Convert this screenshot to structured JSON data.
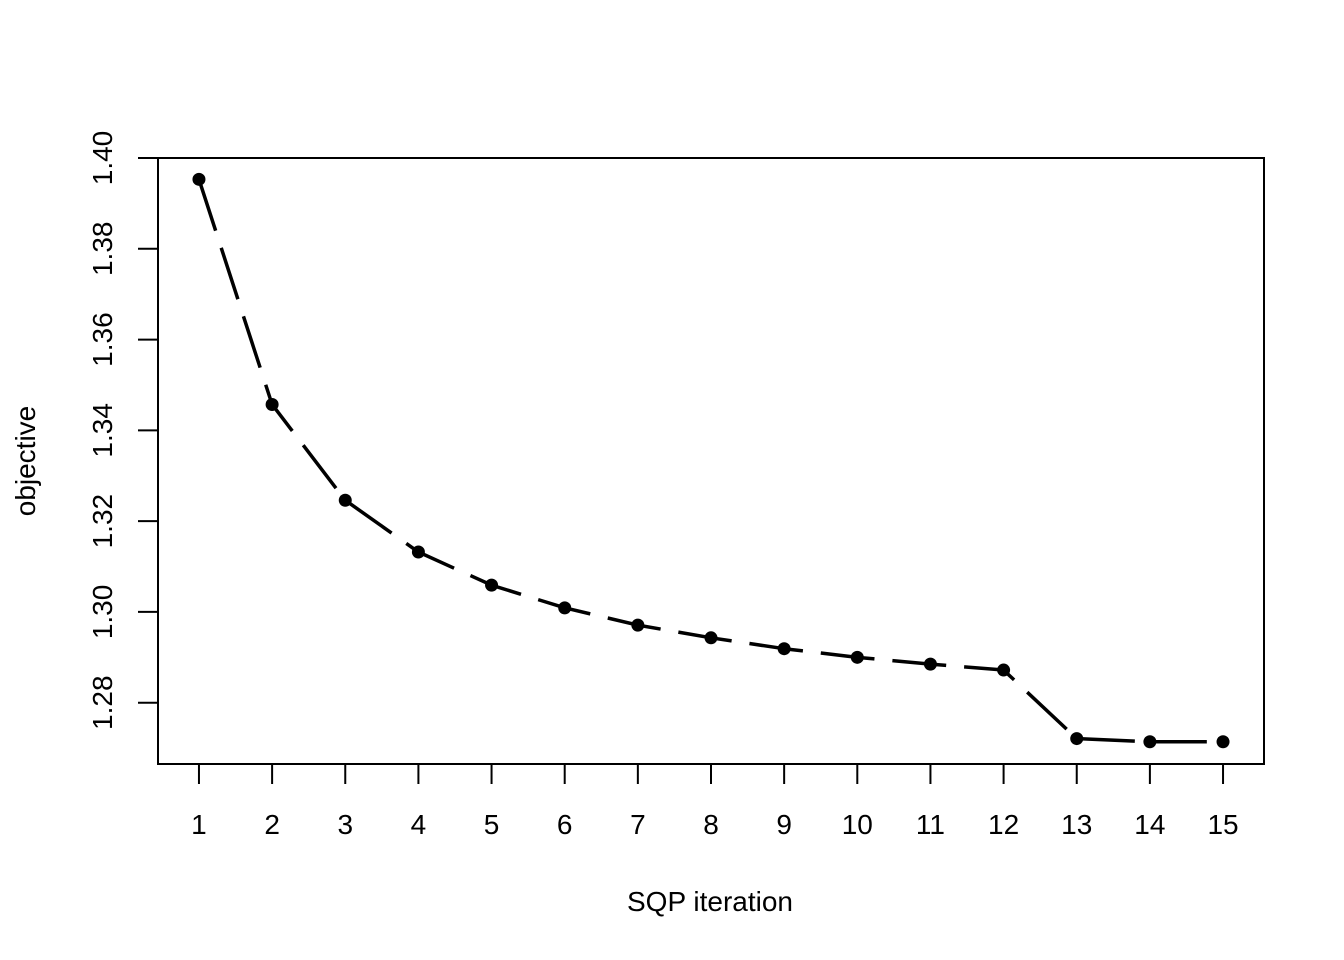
{
  "chart_data": {
    "type": "line",
    "title": "",
    "xlabel": "SQP iteration",
    "ylabel": "objective",
    "x": [
      1,
      2,
      3,
      4,
      5,
      6,
      7,
      8,
      9,
      10,
      11,
      12,
      13,
      14,
      15
    ],
    "x_tick_labels": [
      "1",
      "2",
      "3",
      "4",
      "5",
      "6",
      "7",
      "8",
      "9",
      "10",
      "11",
      "12",
      "13",
      "14",
      "15"
    ],
    "y_ticks": [
      1.28,
      1.3,
      1.32,
      1.34,
      1.36,
      1.38,
      1.4
    ],
    "y_tick_labels": [
      "1.28",
      "1.30",
      "1.32",
      "1.34",
      "1.36",
      "1.38",
      "1.40"
    ],
    "xlim": [
      0.44,
      15.56
    ],
    "ylim": [
      1.2665,
      1.4
    ],
    "grid": false,
    "legend": "none",
    "series": [
      {
        "values": [
          1.3953,
          1.3457,
          1.3246,
          1.3132,
          1.3059,
          1.3009,
          1.2971,
          1.2943,
          1.2919,
          1.29,
          1.2885,
          1.2872,
          1.2721,
          1.2714,
          1.2714
        ],
        "line_style": "dashed",
        "marker": "filled-circle",
        "color": "#000000"
      }
    ]
  }
}
